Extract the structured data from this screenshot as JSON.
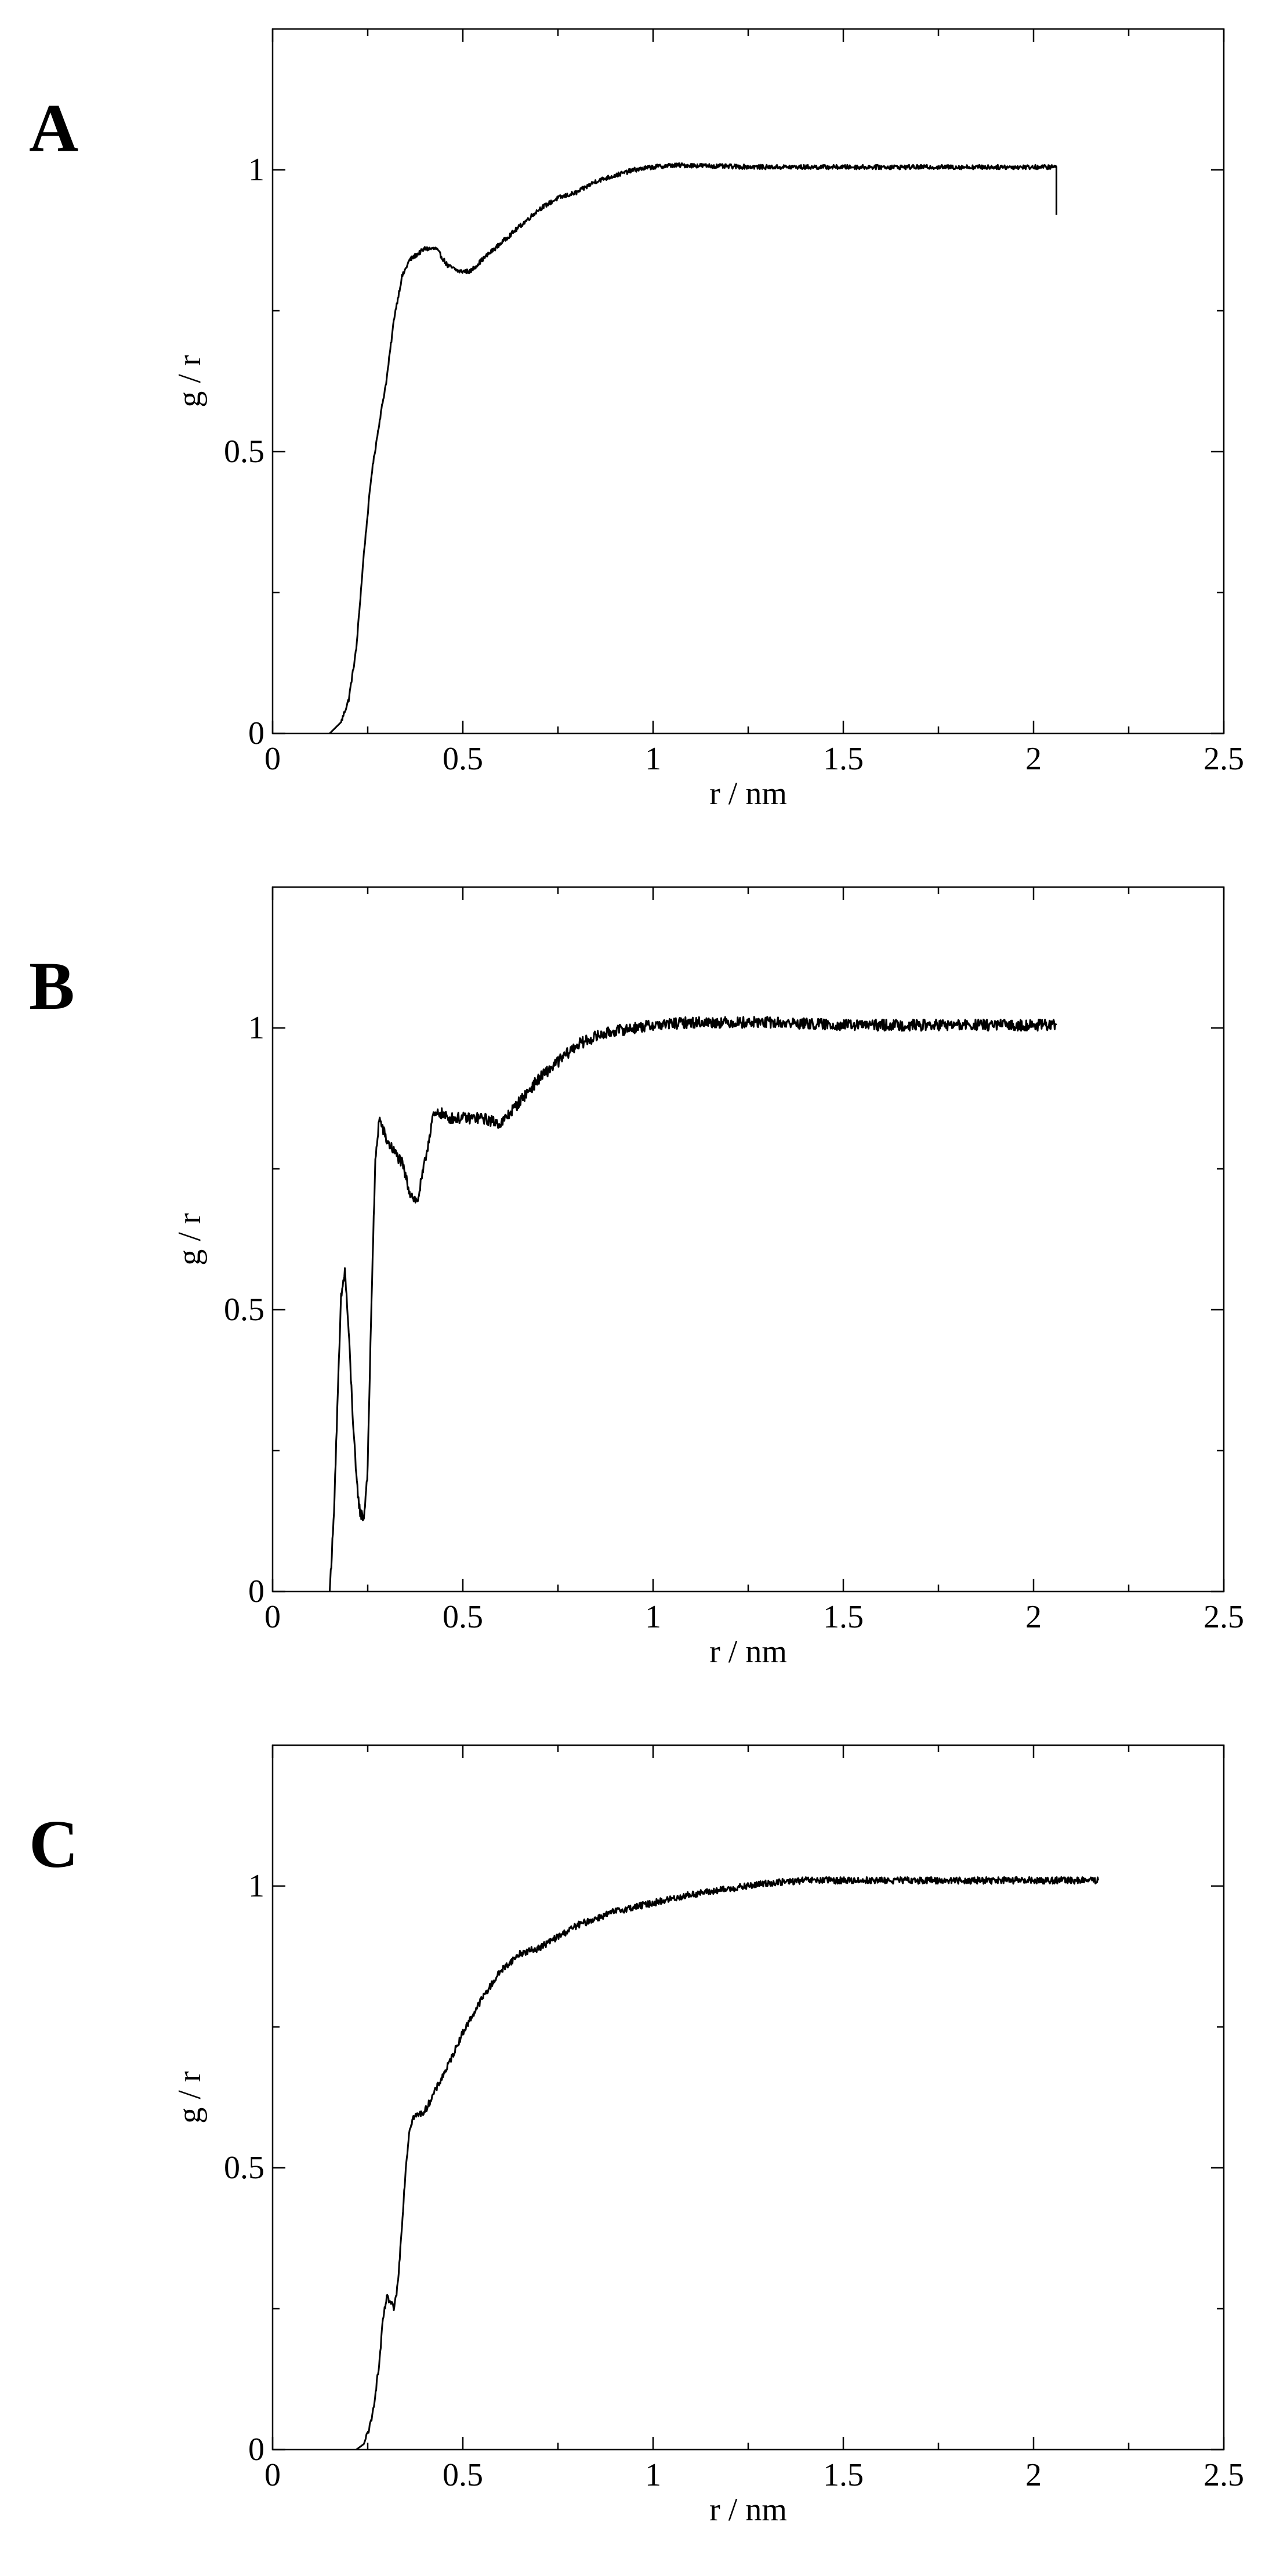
{
  "chart_data": [
    {
      "panel_label": "A",
      "type": "line",
      "xlabel": "r / nm",
      "ylabel": "g / r",
      "xlim": [
        0,
        2.5
      ],
      "ylim": [
        0,
        1.25
      ],
      "xticks": [
        "0",
        "0.5",
        "1",
        "1.5",
        "2",
        "2.5"
      ],
      "yticks": [
        "0",
        "0.5",
        "1"
      ],
      "noise": 0.004,
      "end_drop": 0.92,
      "series": [
        {
          "x": [
            0.15,
            0.18,
            0.2,
            0.22,
            0.24,
            0.26,
            0.28,
            0.3,
            0.32,
            0.34,
            0.36,
            0.38,
            0.4,
            0.43,
            0.46,
            0.49,
            0.52,
            0.55,
            0.6,
            0.65,
            0.7,
            0.75,
            0.8,
            0.85,
            0.9,
            0.95,
            1.0,
            1.05,
            1.1,
            1.2,
            1.3,
            1.5,
            1.7,
            1.9,
            2.06
          ],
          "y": [
            0.0,
            0.02,
            0.06,
            0.15,
            0.32,
            0.46,
            0.55,
            0.63,
            0.74,
            0.81,
            0.84,
            0.85,
            0.86,
            0.86,
            0.83,
            0.82,
            0.82,
            0.84,
            0.87,
            0.9,
            0.93,
            0.95,
            0.96,
            0.98,
            0.99,
            1.0,
            1.005,
            1.008,
            1.008,
            1.006,
            1.005,
            1.005,
            1.005,
            1.005,
            1.005
          ]
        }
      ]
    },
    {
      "panel_label": "B",
      "type": "line",
      "xlabel": "r / nm",
      "ylabel": "g / r",
      "xlim": [
        0,
        2.5
      ],
      "ylim": [
        0,
        1.25
      ],
      "xticks": [
        "0",
        "0.5",
        "1",
        "1.5",
        "2",
        "2.5"
      ],
      "yticks": [
        "0",
        "0.5",
        "1"
      ],
      "noise": 0.01,
      "series": [
        {
          "x": [
            0.15,
            0.16,
            0.17,
            0.18,
            0.19,
            0.2,
            0.21,
            0.22,
            0.23,
            0.24,
            0.25,
            0.26,
            0.27,
            0.28,
            0.3,
            0.32,
            0.34,
            0.36,
            0.38,
            0.4,
            0.42,
            0.44,
            0.46,
            0.5,
            0.55,
            0.6,
            0.65,
            0.7,
            0.75,
            0.8,
            0.85,
            0.9,
            0.95,
            1.0,
            1.1,
            1.2,
            1.3,
            1.5,
            1.7,
            1.9,
            2.06
          ],
          "y": [
            0.0,
            0.12,
            0.32,
            0.52,
            0.57,
            0.46,
            0.32,
            0.2,
            0.14,
            0.13,
            0.22,
            0.52,
            0.76,
            0.84,
            0.8,
            0.78,
            0.76,
            0.71,
            0.69,
            0.76,
            0.84,
            0.85,
            0.84,
            0.84,
            0.84,
            0.83,
            0.87,
            0.91,
            0.94,
            0.97,
            0.985,
            0.995,
            1.0,
            1.005,
            1.01,
            1.01,
            1.01,
            1.005,
            1.005,
            1.005,
            1.005
          ]
        }
      ]
    },
    {
      "panel_label": "C",
      "type": "line",
      "xlabel": "r / nm",
      "ylabel": "g / r",
      "xlim": [
        0,
        2.5
      ],
      "ylim": [
        0,
        1.25
      ],
      "xticks": [
        "0",
        "0.5",
        "1",
        "1.5",
        "2",
        "2.5"
      ],
      "yticks": [
        "0",
        "0.5",
        "1"
      ],
      "noise": 0.006,
      "series": [
        {
          "x": [
            0.22,
            0.24,
            0.26,
            0.28,
            0.29,
            0.3,
            0.31,
            0.32,
            0.33,
            0.34,
            0.35,
            0.36,
            0.37,
            0.4,
            0.43,
            0.46,
            0.5,
            0.55,
            0.6,
            0.65,
            0.7,
            0.75,
            0.8,
            0.9,
            1.0,
            1.1,
            1.2,
            1.3,
            1.4,
            1.5,
            1.7,
            1.9,
            2.1,
            2.17
          ],
          "y": [
            0.0,
            0.01,
            0.05,
            0.15,
            0.23,
            0.27,
            0.26,
            0.25,
            0.3,
            0.4,
            0.5,
            0.57,
            0.59,
            0.6,
            0.64,
            0.68,
            0.74,
            0.8,
            0.85,
            0.88,
            0.89,
            0.91,
            0.93,
            0.955,
            0.97,
            0.985,
            0.995,
            1.005,
            1.01,
            1.01,
            1.01,
            1.01,
            1.01,
            1.01
          ]
        }
      ]
    }
  ]
}
